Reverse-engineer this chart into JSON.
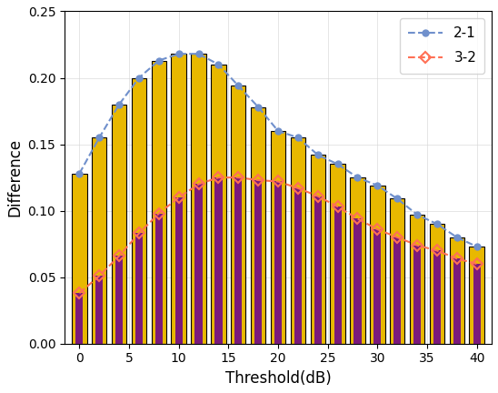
{
  "x_bars": [
    0,
    2,
    4,
    6,
    8,
    10,
    12,
    14,
    16,
    18,
    20,
    22,
    24,
    26,
    28,
    30,
    32,
    34,
    36,
    38,
    40
  ],
  "bar1": [
    0.128,
    0.155,
    0.18,
    0.2,
    0.213,
    0.218,
    0.218,
    0.21,
    0.194,
    0.178,
    0.16,
    0.155,
    0.142,
    0.135,
    0.125,
    0.119,
    0.109,
    0.097,
    0.09,
    0.08,
    0.073
  ],
  "bar2": [
    0.038,
    0.051,
    0.066,
    0.083,
    0.098,
    0.11,
    0.12,
    0.125,
    0.125,
    0.123,
    0.122,
    0.117,
    0.111,
    0.103,
    0.094,
    0.086,
    0.08,
    0.074,
    0.07,
    0.064,
    0.06
  ],
  "x_lines": [
    0,
    2,
    4,
    6,
    8,
    10,
    12,
    14,
    16,
    18,
    20,
    22,
    24,
    26,
    28,
    30,
    32,
    34,
    36,
    38,
    40
  ],
  "line1": [
    0.128,
    0.155,
    0.18,
    0.2,
    0.213,
    0.218,
    0.218,
    0.21,
    0.194,
    0.178,
    0.16,
    0.155,
    0.142,
    0.135,
    0.125,
    0.119,
    0.109,
    0.097,
    0.09,
    0.08,
    0.073
  ],
  "line2": [
    0.038,
    0.051,
    0.066,
    0.083,
    0.098,
    0.11,
    0.12,
    0.125,
    0.125,
    0.123,
    0.122,
    0.117,
    0.111,
    0.103,
    0.094,
    0.086,
    0.08,
    0.074,
    0.07,
    0.064,
    0.06
  ],
  "bar_color_outer": "#E8B800",
  "bar_color_inner": "#7B1A7B",
  "line1_color": "#7090CC",
  "line2_color": "#FF7055",
  "xlabel": "Threshold(dB)",
  "ylabel": "Difference",
  "xlim": [
    -1.5,
    41.5
  ],
  "ylim": [
    0,
    0.25
  ],
  "yticks": [
    0,
    0.05,
    0.1,
    0.15,
    0.2,
    0.25
  ],
  "xticks": [
    0,
    5,
    10,
    15,
    20,
    25,
    30,
    35,
    40
  ],
  "legend_labels": [
    "2-1",
    "3-2"
  ]
}
